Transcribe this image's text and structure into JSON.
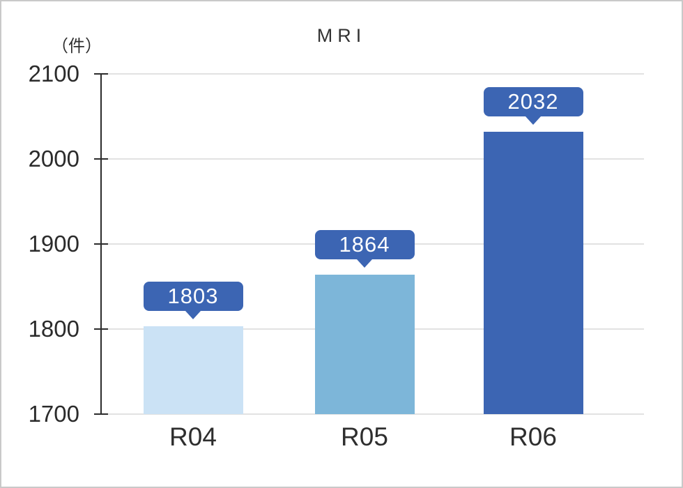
{
  "window": {
    "background": "#ffffff",
    "border_color": "#c9c9c9"
  },
  "chart_data": {
    "type": "bar",
    "title": "MRI",
    "unit_label": "（件）",
    "categories": [
      "R04",
      "R05",
      "R06"
    ],
    "values": [
      1803,
      1864,
      2032
    ],
    "data_labels": [
      "1803",
      "1864",
      "2032"
    ],
    "bar_colors": [
      "#cbe2f5",
      "#7db6d9",
      "#3c65b3"
    ],
    "callout_color": "#3c65b3",
    "callout_text_color": "#ffffff",
    "ylim": [
      1700,
      2100
    ],
    "yticks": [
      1700,
      1800,
      1900,
      2000,
      2100
    ],
    "grid": true,
    "gridline_color": "#e2e2e2",
    "axis_color": "#2b2b2b",
    "text_color": "#2e2e2e",
    "xlabel": "",
    "legend": "none"
  }
}
